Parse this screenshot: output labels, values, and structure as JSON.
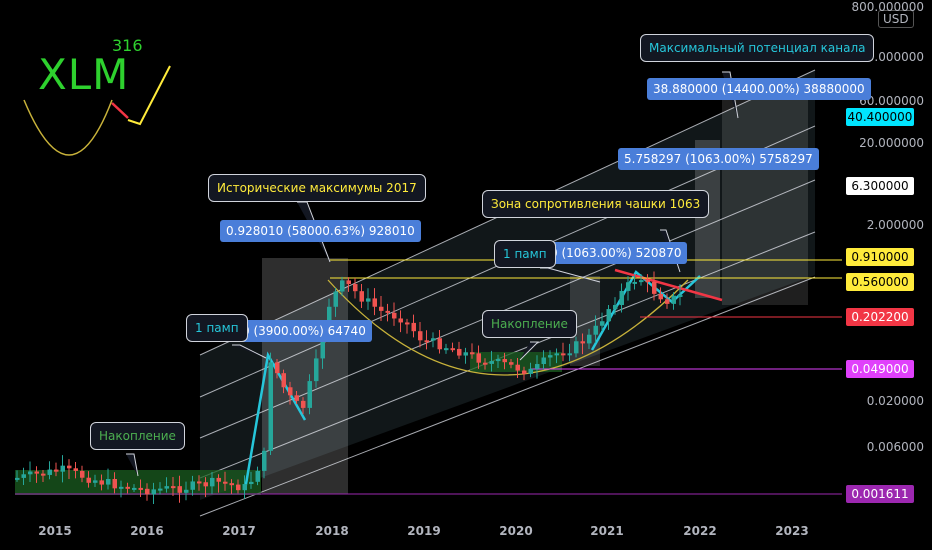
{
  "header": {
    "currency": "USD"
  },
  "logo": {
    "ticker": "XLM",
    "badge": "316"
  },
  "chart_data": {
    "type": "candlestick",
    "x_tick_labels": [
      "2015",
      "2016",
      "2017",
      "2018",
      "2019",
      "2020",
      "2021",
      "2022",
      "2023"
    ],
    "y_scale": "log",
    "y_tick_labels": [
      "800.000000",
      "200.000000",
      "60.000000",
      "20.000000",
      "2.000000",
      "0.020000",
      "0.006000"
    ],
    "price_tags": [
      {
        "value": "40.400000",
        "bg": "#00e5ff",
        "fg": "#000000"
      },
      {
        "value": "6.300000",
        "bg": "#ffffff",
        "fg": "#000000"
      },
      {
        "value": "0.910000",
        "bg": "#ffeb3b",
        "fg": "#000000"
      },
      {
        "value": "0.560000",
        "bg": "#ffeb3b",
        "fg": "#000000"
      },
      {
        "value": "0.202200",
        "bg": "#f23645",
        "fg": "#ffffff"
      },
      {
        "value": "0.049000",
        "bg": "#e040fb",
        "fg": "#ffffff"
      },
      {
        "value": "0.001611",
        "bg": "#9c27b0",
        "fg": "#ffffff"
      }
    ],
    "price_lines": [
      {
        "value": 0.91,
        "color": "#ffeb3b"
      },
      {
        "value": 0.56,
        "color": "#ffeb3b"
      },
      {
        "value": 0.2022,
        "color": "#f23645"
      },
      {
        "value": 0.049,
        "color": "#e040fb"
      },
      {
        "value": 0.001611,
        "color": "#9c27b0"
      }
    ]
  },
  "annotations": {
    "channel_potential": "Максимальный потенциал канала",
    "channel_potential_value": "38.880000 (14400.00%) 38880000",
    "target_mid": "5.758297 (1063.00%) 5758297",
    "ath_2017": "Исторические максимумы 2017",
    "ath_2017_value": "0.928010 (58000.63%) 928010",
    "cup_resistance": "Зона сопротивления чашки 1063",
    "pump_2021": "1 памп",
    "pump_2021_value": "0 (1063.00%) 520870",
    "pump_2017": "1 памп",
    "pump_2017_value": "0 (3900.00%) 64740",
    "accumulation_2020": "Накопление",
    "accumulation_2016": "Накопление"
  }
}
